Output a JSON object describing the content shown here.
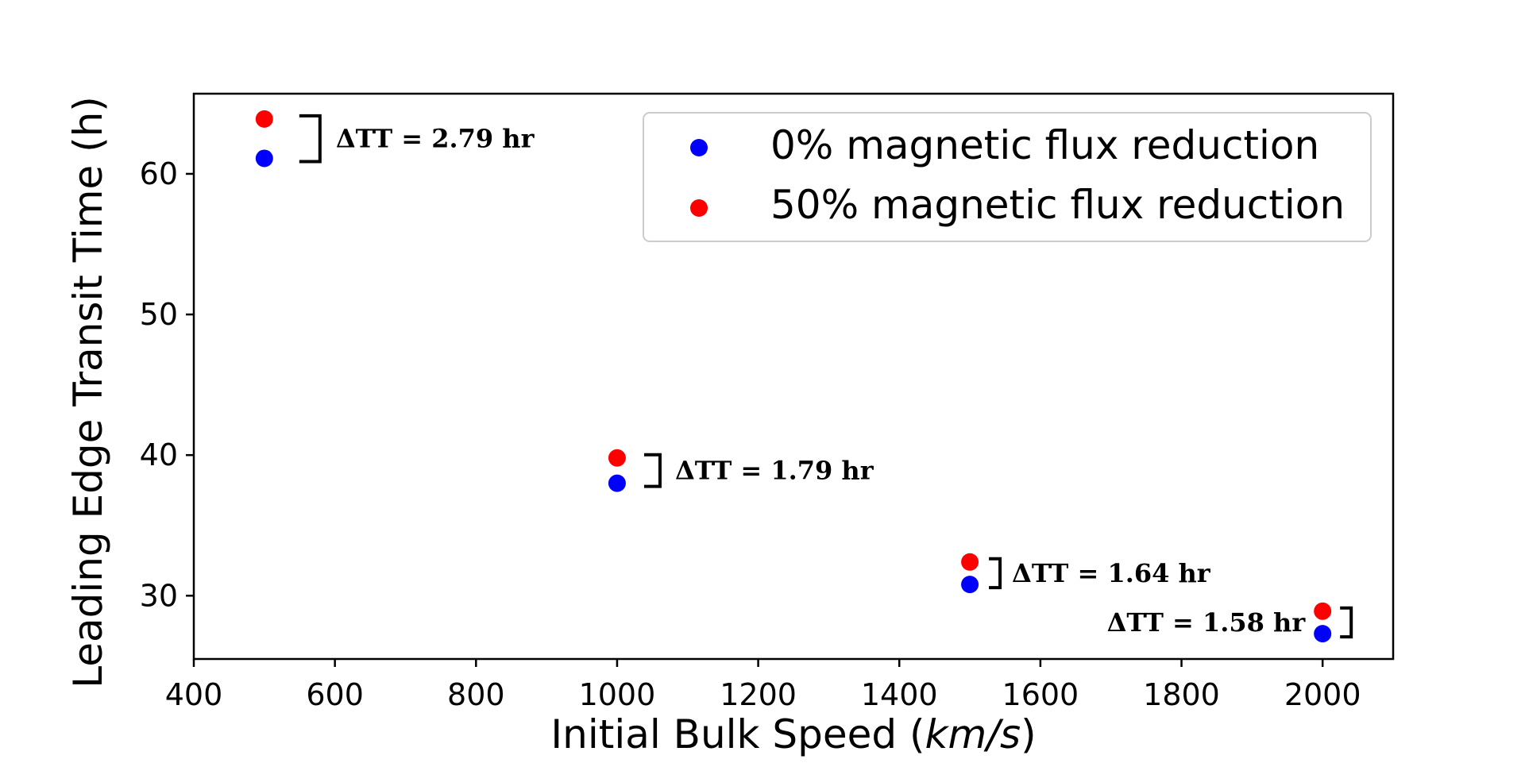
{
  "chart_data": {
    "type": "scatter",
    "xlabel": {
      "prefix": "Initial Bulk Speed (",
      "unit": "km/s",
      "suffix": ")"
    },
    "ylabel": "Leading Edge Transit Time (h)",
    "xlim": [
      400,
      2100
    ],
    "ylim": [
      25.5,
      65.7
    ],
    "xticks": [
      400,
      600,
      800,
      1000,
      1200,
      1400,
      1600,
      1800,
      2000
    ],
    "yticks": [
      30,
      40,
      50,
      60
    ],
    "grid": false,
    "legend_position": "top-right",
    "series": [
      {
        "name": "0% magnetic flux reduction",
        "color": "#0000ff",
        "points": [
          {
            "x": 500,
            "y": 61.1
          },
          {
            "x": 1000,
            "y": 38.0
          },
          {
            "x": 1500,
            "y": 30.8
          },
          {
            "x": 2000,
            "y": 27.3
          }
        ]
      },
      {
        "name": "50% magnetic flux reduction",
        "color": "#ff0000",
        "points": [
          {
            "x": 500,
            "y": 63.9
          },
          {
            "x": 1000,
            "y": 39.8
          },
          {
            "x": 1500,
            "y": 32.4
          },
          {
            "x": 2000,
            "y": 28.9
          }
        ]
      }
    ],
    "annotations": [
      {
        "x": 500,
        "text": "ΔTT = 2.79 hr",
        "side": "right"
      },
      {
        "x": 1000,
        "text": "ΔTT = 1.79 hr",
        "side": "right"
      },
      {
        "x": 1500,
        "text": "ΔTT = 1.64 hr",
        "side": "right"
      },
      {
        "x": 2000,
        "text": "ΔTT = 1.58 hr",
        "side": "left"
      }
    ]
  }
}
